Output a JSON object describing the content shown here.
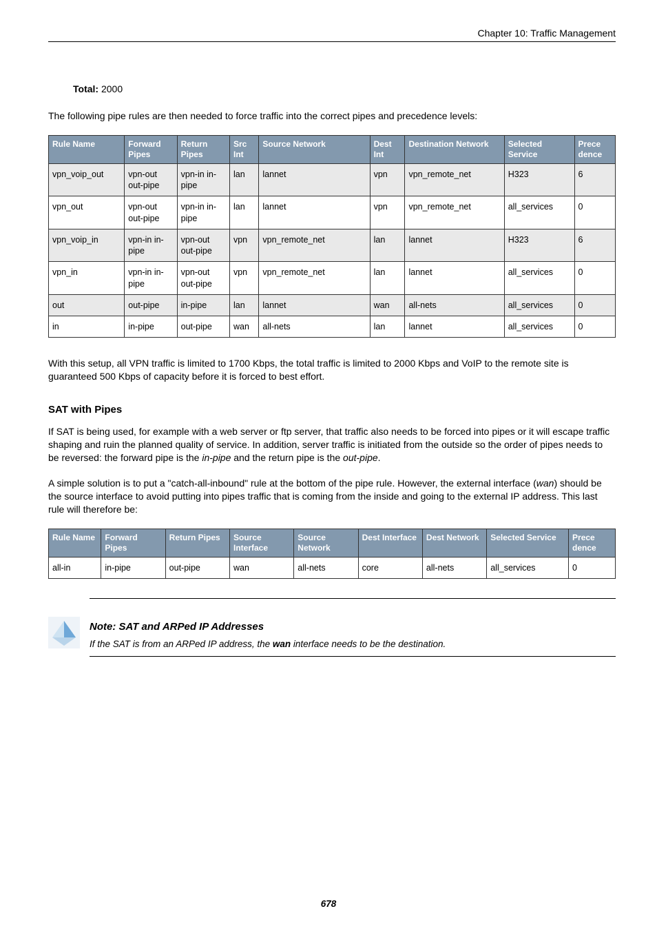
{
  "runningHead": "Chapter 10: Traffic Management",
  "total": {
    "label": "Total:",
    "value": "2000"
  },
  "introPara": "The following pipe rules are then needed to force traffic into the correct pipes and precedence levels:",
  "table1": {
    "colWidths": [
      "13%",
      "9%",
      "9%",
      "5%",
      "19%",
      "6%",
      "17%",
      "12%",
      "7%"
    ],
    "headers": [
      "Rule Name",
      "Forward Pipes",
      "Return Pipes",
      "Src Int",
      "Source Network",
      "Dest Int",
      "Destination Network",
      "Selected Service",
      "Prece dence"
    ],
    "rows": [
      {
        "shade": true,
        "cells": [
          "vpn_voip_out",
          "vpn-out out-pipe",
          "vpn-in in-pipe",
          "lan",
          "lannet",
          "vpn",
          "vpn_remote_net",
          "H323",
          "6"
        ]
      },
      {
        "shade": false,
        "cells": [
          "vpn_out",
          "vpn-out out-pipe",
          "vpn-in in-pipe",
          "lan",
          "lannet",
          "vpn",
          "vpn_remote_net",
          "all_services",
          "0"
        ]
      },
      {
        "shade": true,
        "cells": [
          "vpn_voip_in",
          "vpn-in in-pipe",
          "vpn-out out-pipe",
          "vpn",
          "vpn_remote_net",
          "lan",
          "lannet",
          "H323",
          "6"
        ]
      },
      {
        "shade": false,
        "cells": [
          "vpn_in",
          "vpn-in in-pipe",
          "vpn-out out-pipe",
          "vpn",
          "vpn_remote_net",
          "lan",
          "lannet",
          "all_services",
          "0"
        ]
      },
      {
        "shade": true,
        "cells": [
          "out",
          "out-pipe",
          "in-pipe",
          "lan",
          "lannet",
          "wan",
          "all-nets",
          "all_services",
          "0"
        ]
      },
      {
        "shade": false,
        "cells": [
          "in",
          "in-pipe",
          "out-pipe",
          "wan",
          "all-nets",
          "lan",
          "lannet",
          "all_services",
          "0"
        ]
      }
    ]
  },
  "afterTable1": "With this setup, all VPN traffic is limited to 1700 Kbps, the total traffic is limited to 2000 Kbps and VoIP to the remote site is guaranteed 500 Kbps of capacity before it is forced to best effort.",
  "satHeading": "SAT with Pipes",
  "satPara1_a": "If SAT is being used, for example with a web server or ftp server, that traffic also needs to be forced into pipes or it will escape traffic shaping and ruin the planned quality of service. In addition, server traffic is initiated from the outside so the order of pipes needs to be reversed: the forward pipe is the ",
  "satPara1_i1": "in-pipe",
  "satPara1_b": " and the return pipe is the ",
  "satPara1_i2": "out-pipe",
  "satPara1_c": ".",
  "satPara2_a": "A simple solution is to put a \"catch-all-inbound\" rule at the bottom of the pipe rule. However, the external interface (",
  "satPara2_i1": "wan",
  "satPara2_b": ") should be the source interface to avoid putting into pipes traffic that is coming from the inside and going to the external IP address. This last rule will therefore be:",
  "table2": {
    "colWidths": [
      "9%",
      "11%",
      "11%",
      "11%",
      "11%",
      "11%",
      "11%",
      "14%",
      "8%"
    ],
    "headers": [
      "Rule Name",
      "Forward Pipes",
      "Return Pipes",
      "Source Interface",
      "Source Network",
      "Dest Interface",
      "Dest Network",
      "Selected Service",
      "Prece dence"
    ],
    "rows": [
      {
        "shade": false,
        "cells": [
          "all-in",
          "in-pipe",
          "out-pipe",
          "wan",
          "all-nets",
          "core",
          "all-nets",
          "all_services",
          "0"
        ]
      }
    ]
  },
  "note": {
    "title": "Note: SAT and ARPed IP Addresses",
    "body_a": "If the SAT is from an ARPed IP address, the ",
    "body_bold": "wan",
    "body_b": " interface needs to be the destination."
  },
  "pageNumber": "678",
  "icon": {
    "bg": "#eef3f8",
    "accent": "#6fa8d8",
    "light": "#cfe3f2"
  }
}
